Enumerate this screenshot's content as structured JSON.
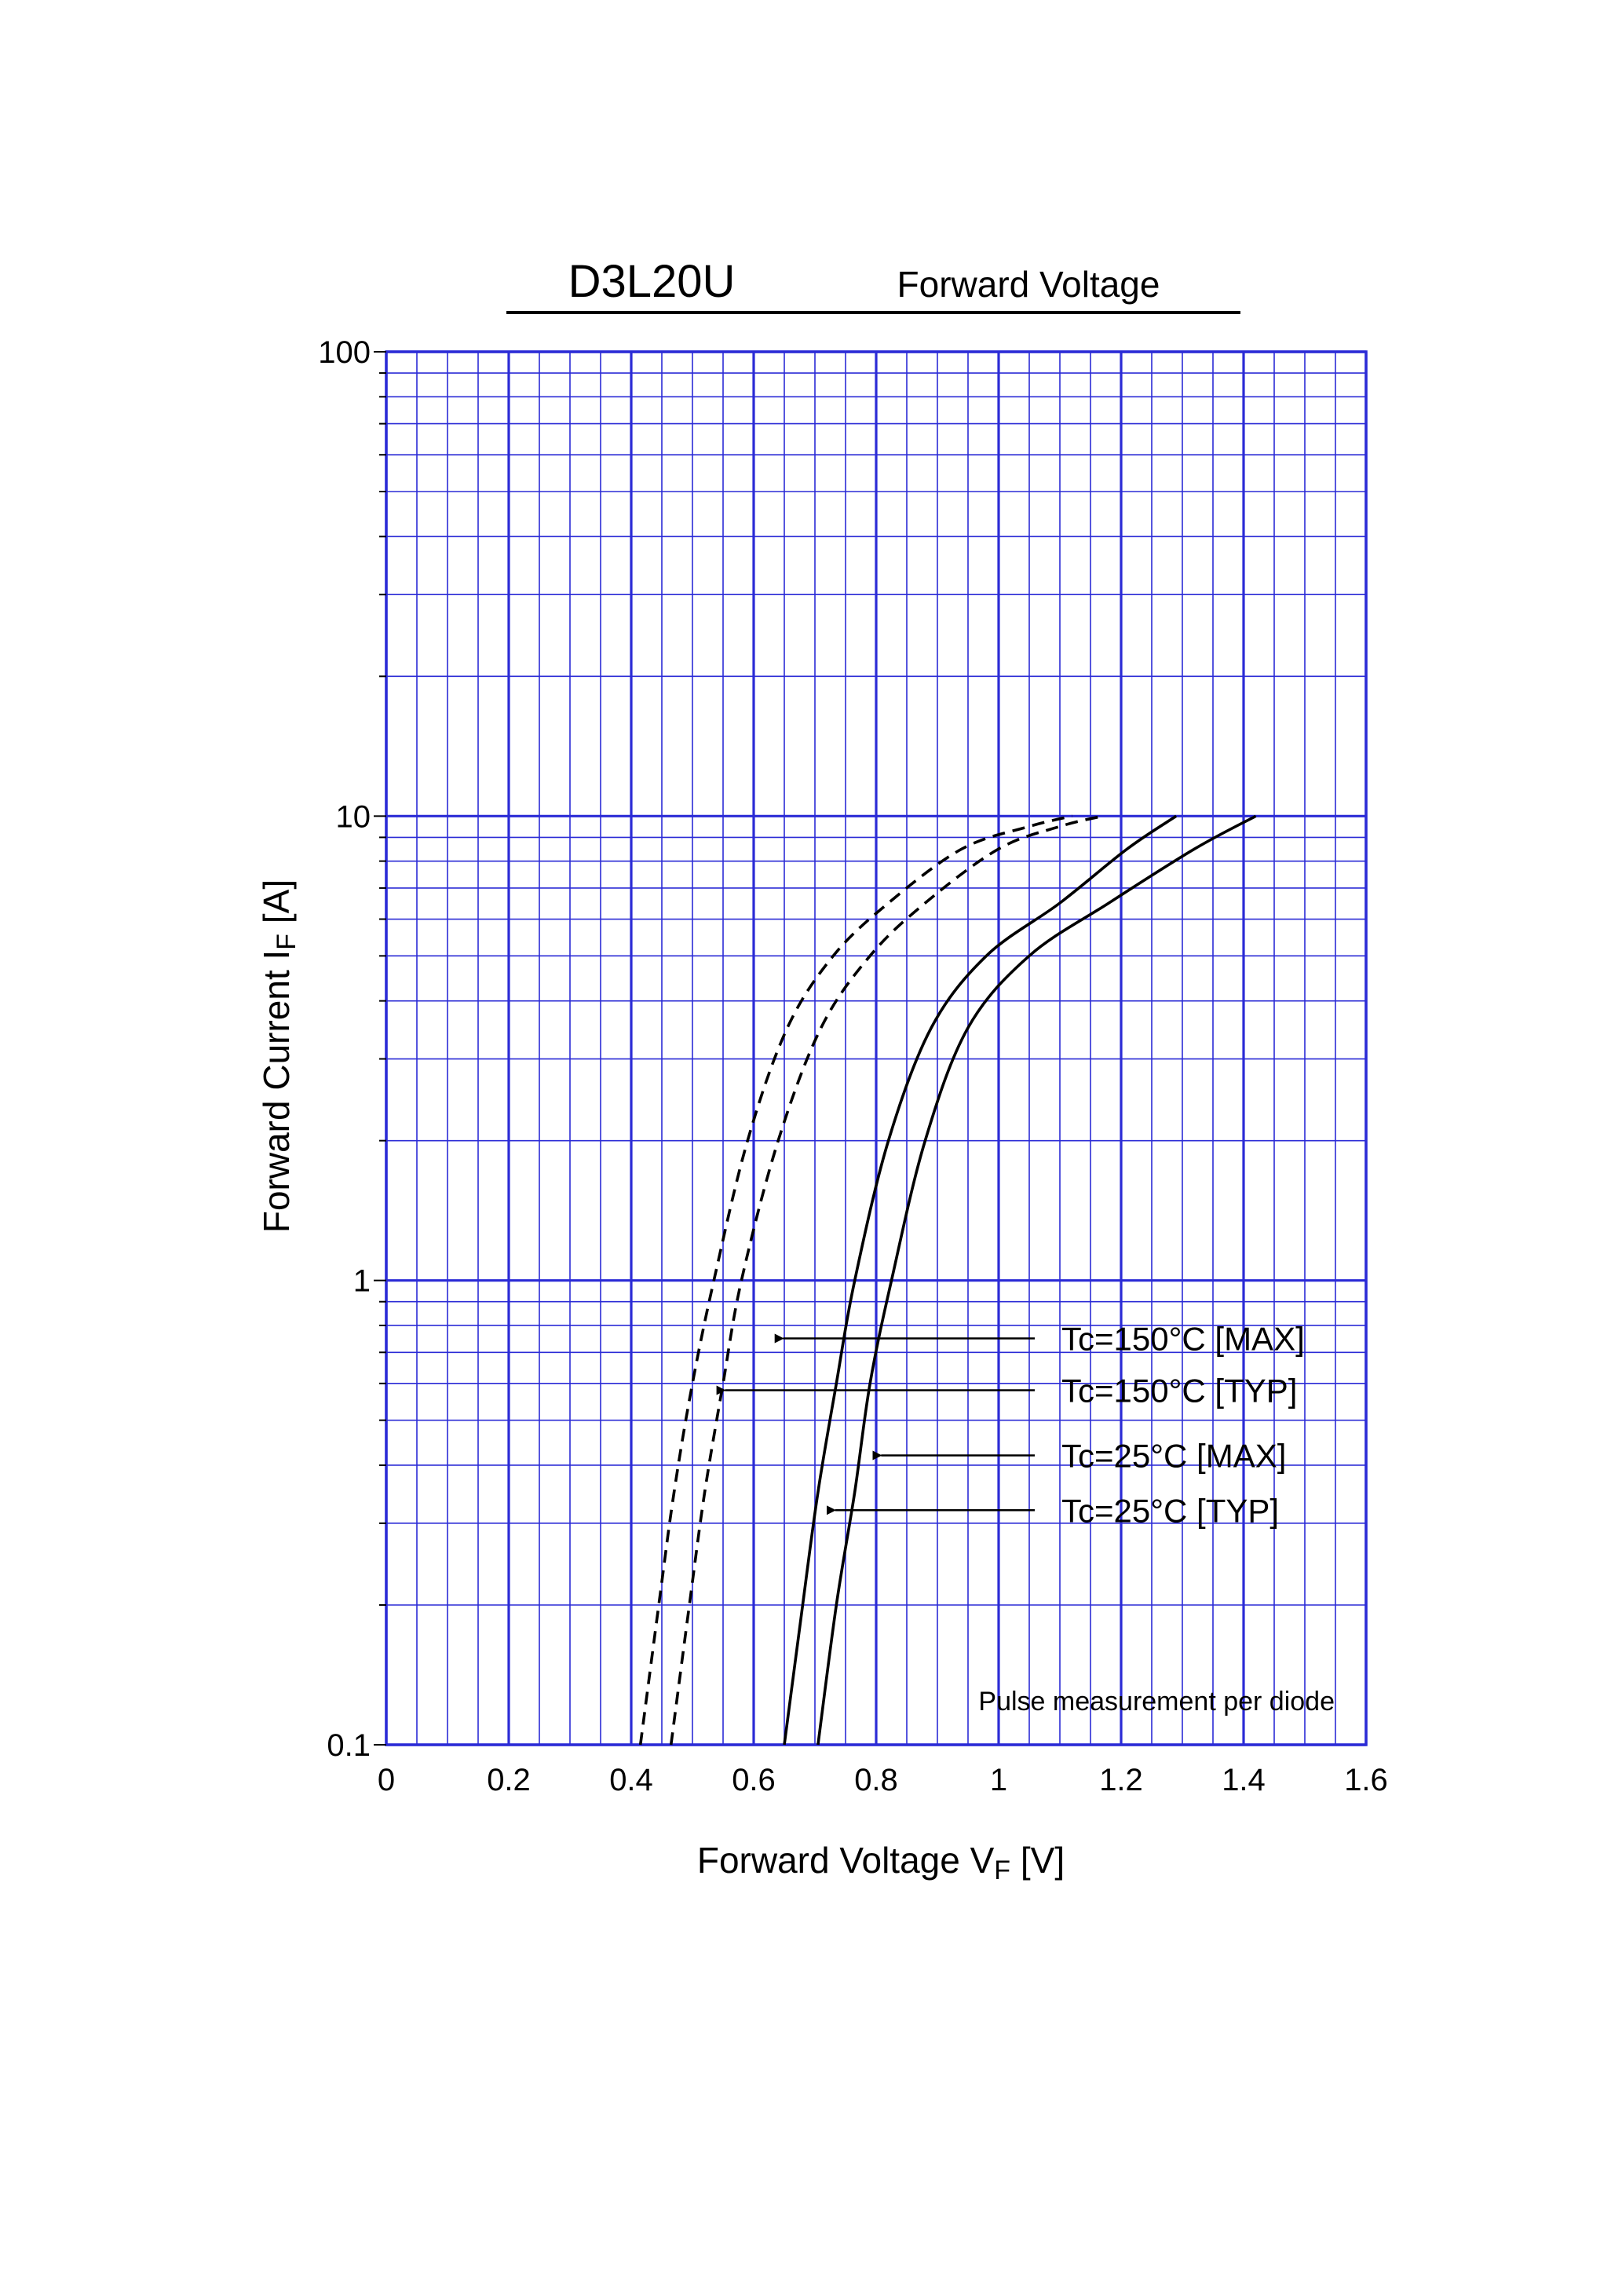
{
  "chart_data": {
    "type": "line",
    "title": "D3L20U",
    "subtitle": "Forward Voltage",
    "xlabel": {
      "main": "Forward Voltage  V",
      "sub": "F",
      "unit": "  [V]"
    },
    "ylabel": {
      "main": "Forward Current  I",
      "sub": "F",
      "unit": "  [A]"
    },
    "xlim": [
      0,
      1.6
    ],
    "ylim": [
      0.1,
      100
    ],
    "yscale": "log",
    "grid": true,
    "x_ticks": [
      "0",
      "0.2",
      "0.4",
      "0.6",
      "0.8",
      "1",
      "1.2",
      "1.4",
      "1.6"
    ],
    "y_ticks": [
      "0.1",
      "1",
      "10",
      "100"
    ],
    "note": "Pulse measurement per diode",
    "colors": {
      "grid": "#2b2bd6",
      "curve": "#000000",
      "text": "#000000"
    },
    "series": [
      {
        "name": "Tc=150°C [MAX]",
        "style": "dashed",
        "points": [
          [
            0.465,
            0.1
          ],
          [
            0.495,
            0.2
          ],
          [
            0.52,
            0.35
          ],
          [
            0.55,
            0.6
          ],
          [
            0.58,
            1
          ],
          [
            0.64,
            2
          ],
          [
            0.71,
            3.5
          ],
          [
            0.79,
            5
          ],
          [
            0.88,
            6.5
          ],
          [
            1.0,
            8.5
          ],
          [
            1.1,
            9.5
          ],
          [
            1.17,
            10
          ]
        ],
        "arrow_at": [
          0.625,
          0.75
        ]
      },
      {
        "name": "Tc=150°C [TYP]",
        "style": "dashed",
        "points": [
          [
            0.415,
            0.1
          ],
          [
            0.445,
            0.2
          ],
          [
            0.47,
            0.35
          ],
          [
            0.5,
            0.6
          ],
          [
            0.535,
            1
          ],
          [
            0.59,
            2
          ],
          [
            0.655,
            3.5
          ],
          [
            0.73,
            5
          ],
          [
            0.82,
            6.5
          ],
          [
            0.94,
            8.5
          ],
          [
            1.05,
            9.5
          ],
          [
            1.12,
            10
          ]
        ],
        "arrow_at": [
          0.53,
          0.58
        ]
      },
      {
        "name": "Tc=25°C [MAX]",
        "style": "solid",
        "points": [
          [
            0.705,
            0.1
          ],
          [
            0.735,
            0.2
          ],
          [
            0.765,
            0.35
          ],
          [
            0.79,
            0.6
          ],
          [
            0.825,
            1
          ],
          [
            0.88,
            2
          ],
          [
            0.95,
            3.5
          ],
          [
            1.05,
            5
          ],
          [
            1.18,
            6.5
          ],
          [
            1.32,
            8.5
          ],
          [
            1.42,
            10
          ]
        ],
        "arrow_at": [
          0.785,
          0.42
        ]
      },
      {
        "name": "Tc=25°C [TYP]",
        "style": "solid",
        "points": [
          [
            0.65,
            0.1
          ],
          [
            0.68,
            0.2
          ],
          [
            0.705,
            0.35
          ],
          [
            0.735,
            0.6
          ],
          [
            0.765,
            1
          ],
          [
            0.82,
            2
          ],
          [
            0.89,
            3.5
          ],
          [
            0.98,
            5
          ],
          [
            1.1,
            6.5
          ],
          [
            1.21,
            8.5
          ],
          [
            1.29,
            10
          ]
        ],
        "arrow_at": [
          0.71,
          0.32
        ]
      }
    ]
  }
}
